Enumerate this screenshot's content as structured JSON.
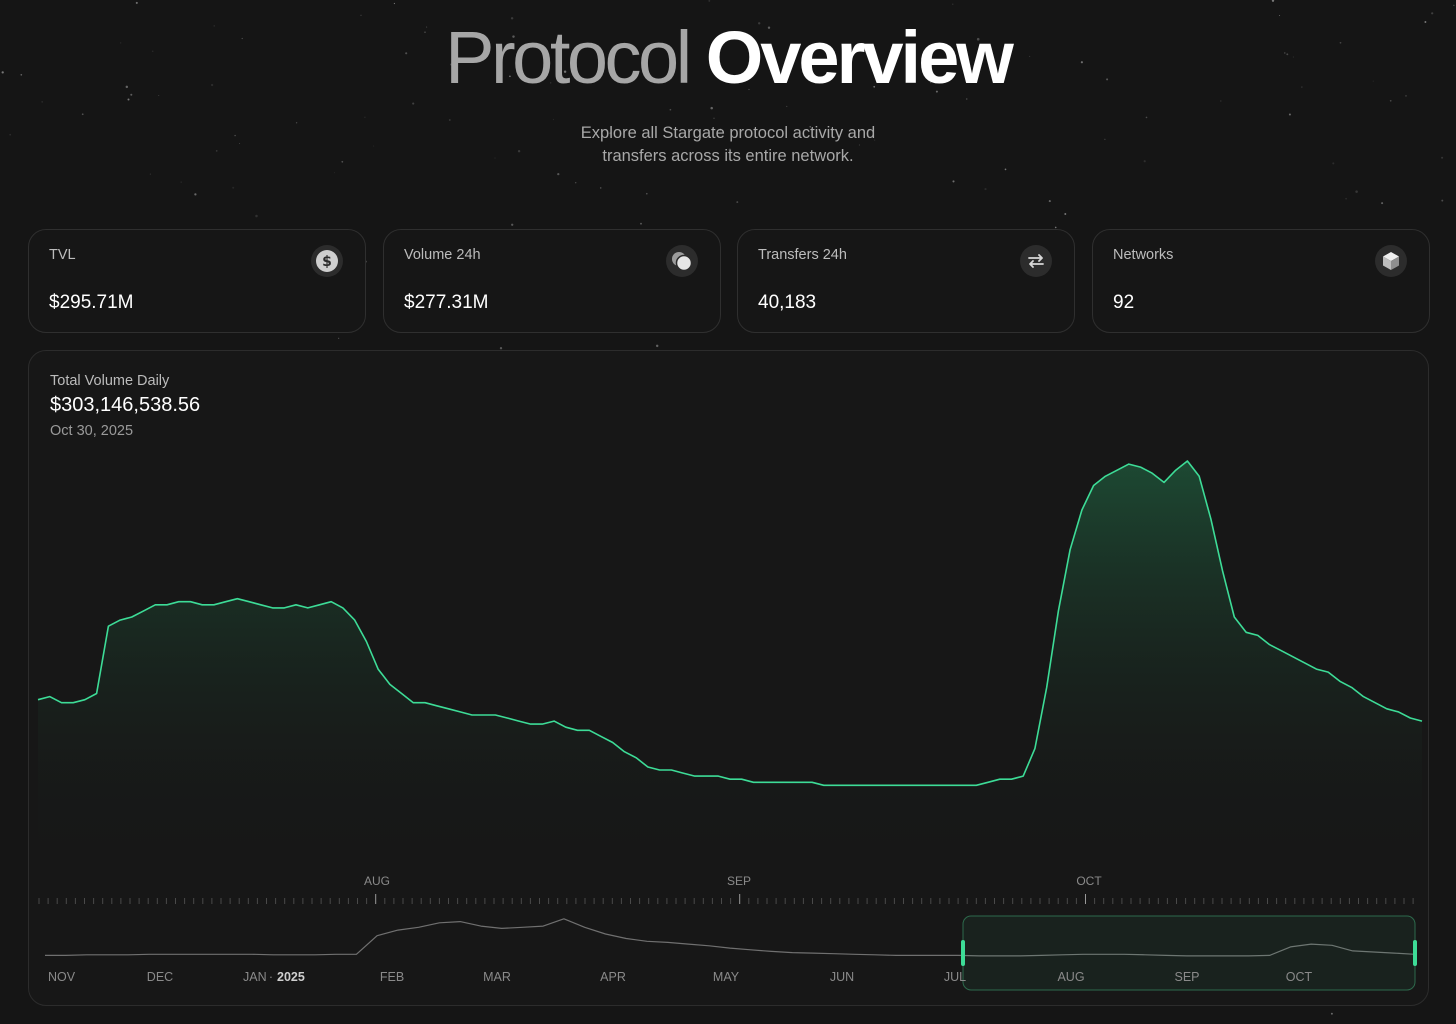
{
  "hero": {
    "title_part1": "Protocol",
    "title_part2": "Overview",
    "subtitle_line1": "Explore all Stargate protocol activity and",
    "subtitle_line2": "transfers across its entire network."
  },
  "stats": [
    {
      "label": "TVL",
      "value": "$295.71M",
      "icon": "dollar-icon"
    },
    {
      "label": "Volume 24h",
      "value": "$277.31M",
      "icon": "coins-icon"
    },
    {
      "label": "Transfers 24h",
      "value": "40,183",
      "icon": "swap-arrows-icon"
    },
    {
      "label": "Networks",
      "value": "92",
      "icon": "cube-icon"
    }
  ],
  "chart": {
    "title": "Total Volume Daily",
    "value": "$303,146,538.56",
    "date": "Oct 30, 2025"
  },
  "colors": {
    "accent": "#3ddc97",
    "background": "#151515",
    "card": "#171717"
  },
  "chart_data": {
    "type": "area",
    "main_axis_labels": [
      "AUG",
      "SEP",
      "OCT"
    ],
    "series": [
      {
        "values": [
          0.56,
          0.57,
          0.55,
          0.55,
          0.56,
          0.58,
          0.8,
          0.82,
          0.83,
          0.85,
          0.87,
          0.87,
          0.88,
          0.88,
          0.87,
          0.87,
          0.88,
          0.89,
          0.88,
          0.87,
          0.86,
          0.86,
          0.87,
          0.86,
          0.87,
          0.88,
          0.86,
          0.82,
          0.75,
          0.66,
          0.61,
          0.58,
          0.55,
          0.55,
          0.54,
          0.53,
          0.52,
          0.51,
          0.51,
          0.51,
          0.5,
          0.49,
          0.48,
          0.48,
          0.49,
          0.47,
          0.46,
          0.46,
          0.44,
          0.42,
          0.39,
          0.37,
          0.34,
          0.33,
          0.33,
          0.32,
          0.31,
          0.31,
          0.31,
          0.3,
          0.3,
          0.29,
          0.29,
          0.29,
          0.29,
          0.29,
          0.29,
          0.28,
          0.28,
          0.28,
          0.28,
          0.28,
          0.28,
          0.28,
          0.28,
          0.28,
          0.28,
          0.28,
          0.28,
          0.28,
          0.28,
          0.29,
          0.3,
          0.3,
          0.31,
          0.4,
          0.6,
          0.85,
          1.05,
          1.18,
          1.26,
          1.29,
          1.31,
          1.33,
          1.32,
          1.3,
          1.27,
          1.31,
          1.34,
          1.29,
          1.15,
          0.98,
          0.83,
          0.78,
          0.77,
          0.74,
          0.72,
          0.7,
          0.68,
          0.66,
          0.65,
          0.62,
          0.6,
          0.57,
          0.55,
          0.53,
          0.52,
          0.5,
          0.49
        ]
      }
    ],
    "navigator": {
      "x_labels": [
        "NOV",
        "DEC",
        "JAN",
        "2025",
        "FEB",
        "MAR",
        "APR",
        "MAY",
        "JUN",
        "JUL",
        "AUG",
        "SEP",
        "OCT"
      ],
      "values": [
        0.1,
        0.1,
        0.11,
        0.11,
        0.11,
        0.12,
        0.12,
        0.12,
        0.12,
        0.12,
        0.12,
        0.11,
        0.11,
        0.11,
        0.12,
        0.12,
        0.45,
        0.55,
        0.6,
        0.68,
        0.7,
        0.62,
        0.58,
        0.6,
        0.62,
        0.75,
        0.6,
        0.48,
        0.4,
        0.35,
        0.33,
        0.3,
        0.27,
        0.23,
        0.2,
        0.17,
        0.15,
        0.14,
        0.13,
        0.12,
        0.11,
        0.1,
        0.1,
        0.1,
        0.1,
        0.09,
        0.09,
        0.09,
        0.1,
        0.11,
        0.12,
        0.12,
        0.12,
        0.11,
        0.1,
        0.09,
        0.09,
        0.09,
        0.09,
        0.1,
        0.25,
        0.3,
        0.28,
        0.18,
        0.16,
        0.14,
        0.12
      ]
    }
  }
}
